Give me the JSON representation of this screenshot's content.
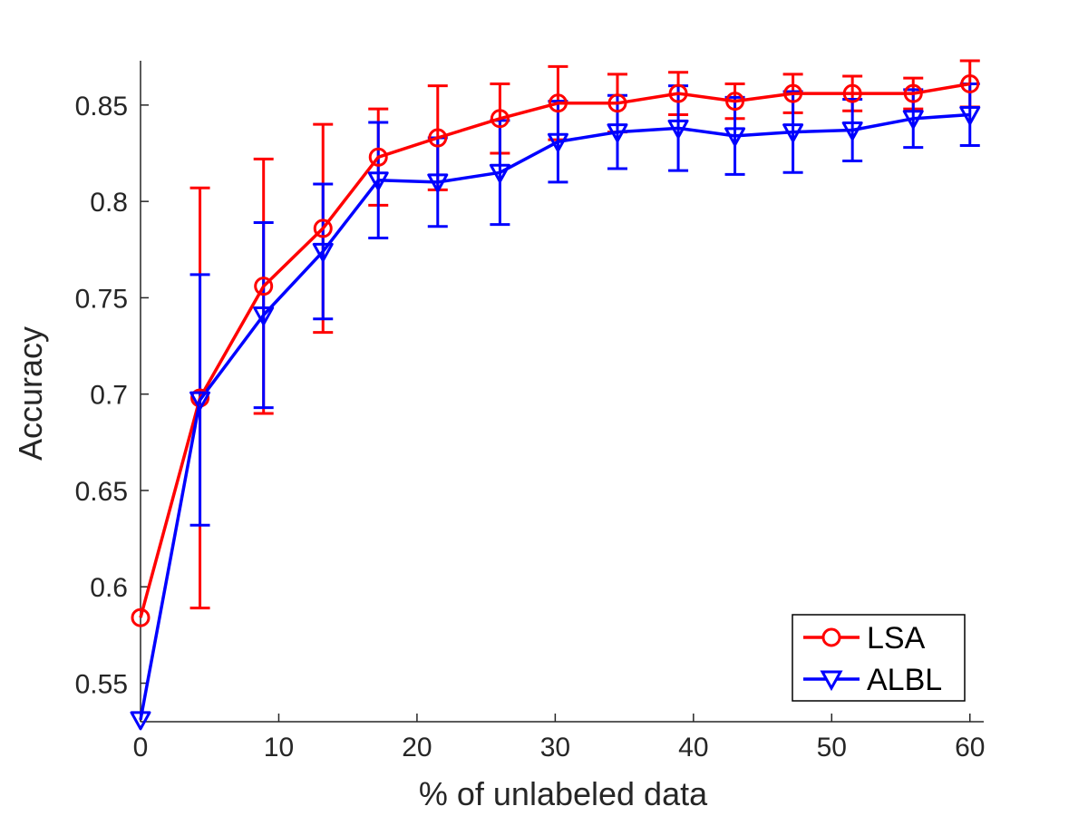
{
  "chart_data": {
    "type": "line",
    "title": "",
    "xlabel": "% of unlabeled data",
    "ylabel": "Accuracy",
    "xlim": [
      0,
      61
    ],
    "ylim": [
      0.53,
      0.873
    ],
    "xticks": [
      0,
      10,
      20,
      30,
      40,
      50,
      60
    ],
    "xtick_labels": [
      "0",
      "10",
      "20",
      "30",
      "40",
      "50",
      "60"
    ],
    "yticks": [
      0.55,
      0.6,
      0.65,
      0.7,
      0.75,
      0.8,
      0.85
    ],
    "ytick_labels": [
      "0.55",
      "0.6",
      "0.65",
      "0.7",
      "0.75",
      "0.8",
      "0.85"
    ],
    "grid": false,
    "legend_position": "bottom-right",
    "x": [
      0,
      4.3,
      8.9,
      13.2,
      17.2,
      21.5,
      26,
      30.2,
      34.5,
      38.9,
      43,
      47.2,
      51.5,
      55.9,
      60
    ],
    "series": [
      {
        "name": "LSA",
        "color": "#ff0000",
        "marker": "circle",
        "values": [
          0.584,
          0.698,
          0.756,
          0.786,
          0.823,
          0.833,
          0.843,
          0.851,
          0.851,
          0.856,
          0.852,
          0.856,
          0.856,
          0.856,
          0.861
        ],
        "error": [
          null,
          0.109,
          0.066,
          0.054,
          0.025,
          0.027,
          0.018,
          0.019,
          0.015,
          0.011,
          0.009,
          0.01,
          0.009,
          0.008,
          0.012
        ]
      },
      {
        "name": "ALBL",
        "color": "#0000ff",
        "marker": "triangle-down",
        "values": [
          0.531,
          0.697,
          0.741,
          0.774,
          0.811,
          0.81,
          0.815,
          0.831,
          0.836,
          0.838,
          0.834,
          0.836,
          0.837,
          0.843,
          0.845
        ],
        "error": [
          null,
          0.065,
          0.048,
          0.035,
          0.03,
          0.023,
          0.027,
          0.021,
          0.019,
          0.022,
          0.02,
          0.021,
          0.016,
          0.015,
          0.016
        ]
      }
    ]
  }
}
